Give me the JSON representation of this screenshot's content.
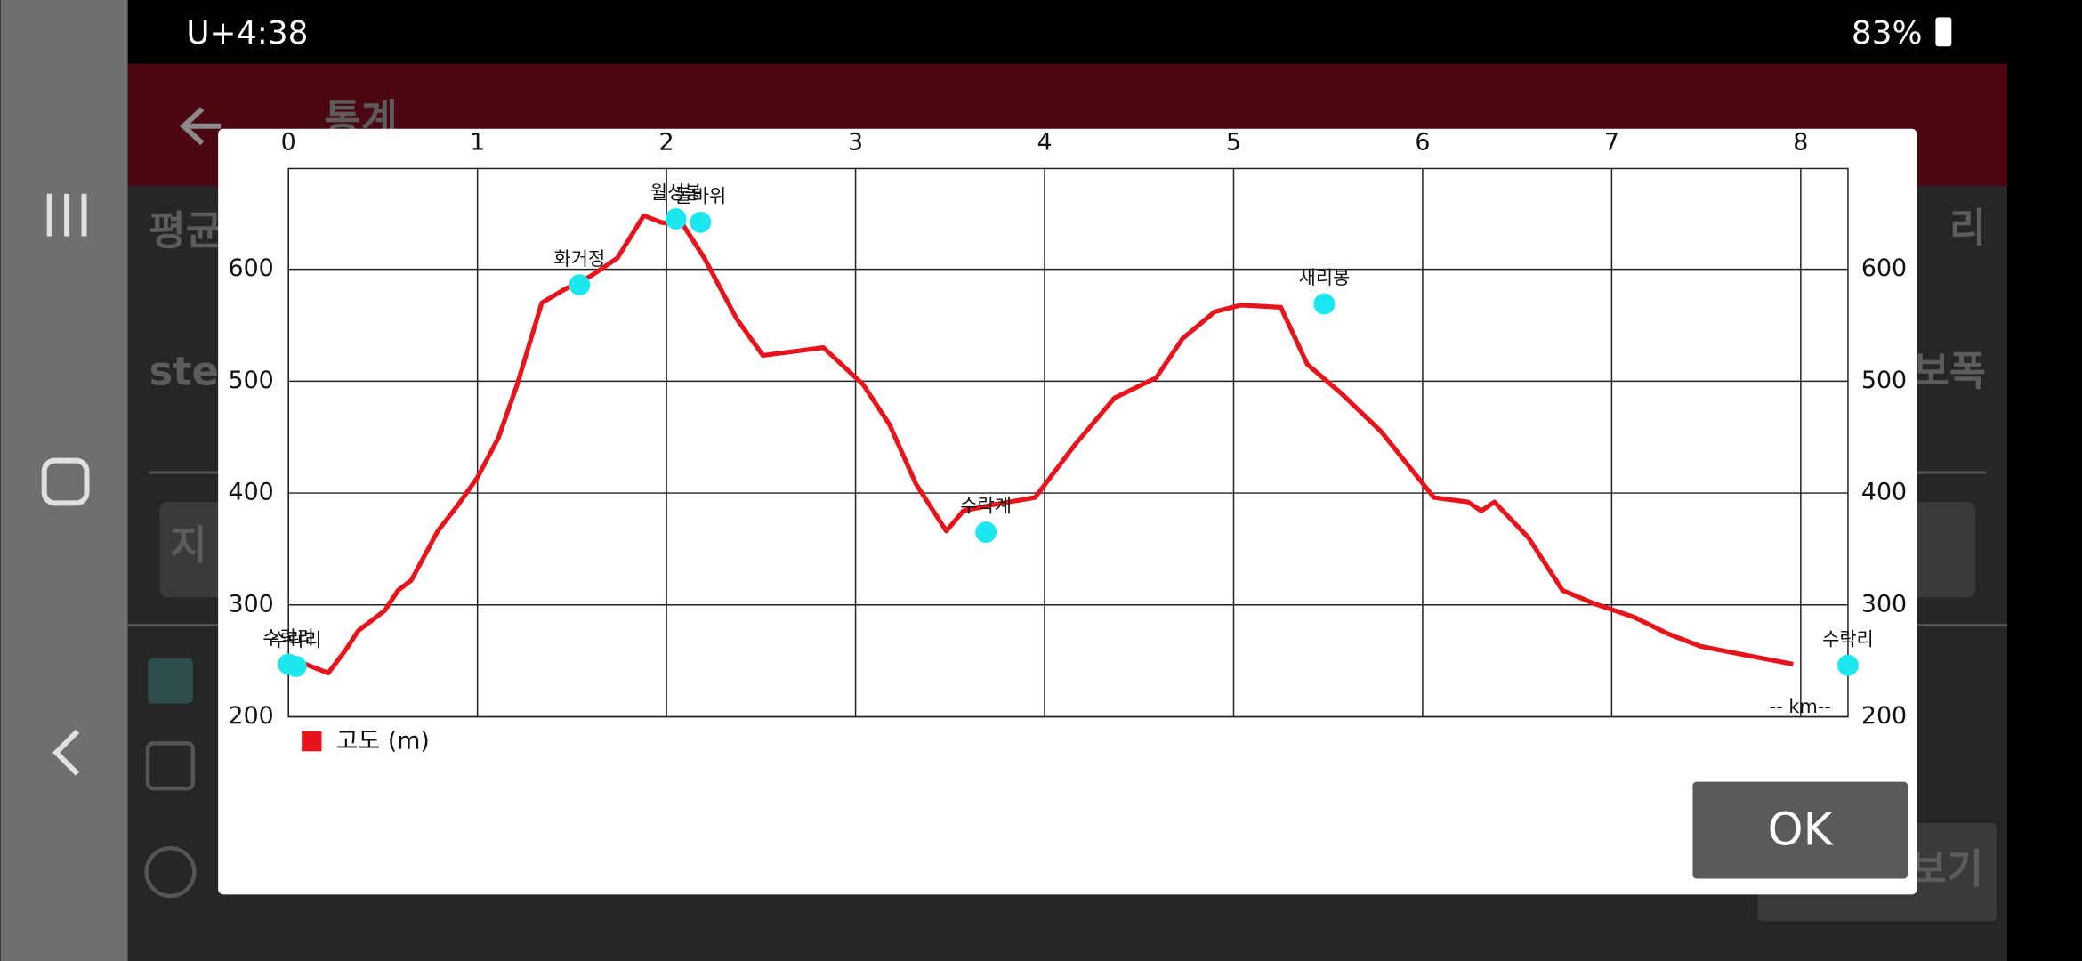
{
  "status_bar": {
    "carrier": "U+",
    "time": "4:38",
    "battery": "83%"
  },
  "app": {
    "title": "통계",
    "labels": [
      "평균",
      "ste",
      "리",
      "보폭",
      "지",
      "보기"
    ]
  },
  "dialog": {
    "ok": "OK"
  },
  "chart_data": {
    "type": "line",
    "x_unit_label": "-- km--",
    "x": [
      0,
      0.09,
      0.21,
      0.3,
      0.37,
      0.51,
      0.58,
      0.65,
      0.79,
      0.9,
      1.0,
      1.11,
      1.21,
      1.34,
      1.46,
      1.6,
      1.74,
      1.88,
      1.97,
      2.09,
      2.2,
      2.37,
      2.51,
      2.65,
      2.83,
      3.04,
      3.18,
      3.32,
      3.48,
      3.57,
      3.74,
      3.95,
      4.16,
      4.37,
      4.59,
      4.73,
      4.9,
      5.04,
      5.25,
      5.39,
      5.57,
      5.78,
      6.06,
      6.24,
      6.31,
      6.38,
      6.56,
      6.74,
      6.91,
      7.12,
      7.3,
      7.47,
      7.68,
      7.96
    ],
    "series": [
      {
        "name": "고도 (m)",
        "color": "#e8141c",
        "values": [
          251,
          247,
          239,
          259,
          277,
          295,
          313,
          322,
          366,
          390,
          414,
          449,
          497,
          570,
          582,
          594,
          610,
          648,
          642,
          639,
          610,
          556,
          523,
          526,
          530,
          497,
          461,
          408,
          366,
          384,
          390,
          396,
          443,
          485,
          503,
          538,
          562,
          568,
          566,
          515,
          489,
          455,
          396,
          392,
          384,
          392,
          360,
          313,
          301,
          289,
          274,
          263,
          256,
          247
        ]
      }
    ],
    "waypoints": {
      "color": "#1de7ee",
      "labels": [
        "수락리",
        "수락리",
        "화거정",
        "월성봉",
        "돌바위",
        "수락계",
        "새리봉",
        "수락리"
      ],
      "x": [
        0,
        0.04,
        1.54,
        2.05,
        2.18,
        3.69,
        5.48,
        8.25
      ],
      "values": [
        247,
        245,
        586,
        645,
        642,
        365,
        569,
        246
      ]
    },
    "xlim": [
      0,
      8.25
    ],
    "ylim": [
      200,
      690
    ],
    "xticks": [
      0,
      1,
      2,
      3,
      4,
      5,
      6,
      7,
      8
    ],
    "yticks": [
      200,
      300,
      400,
      500,
      600
    ],
    "grid": true
  }
}
